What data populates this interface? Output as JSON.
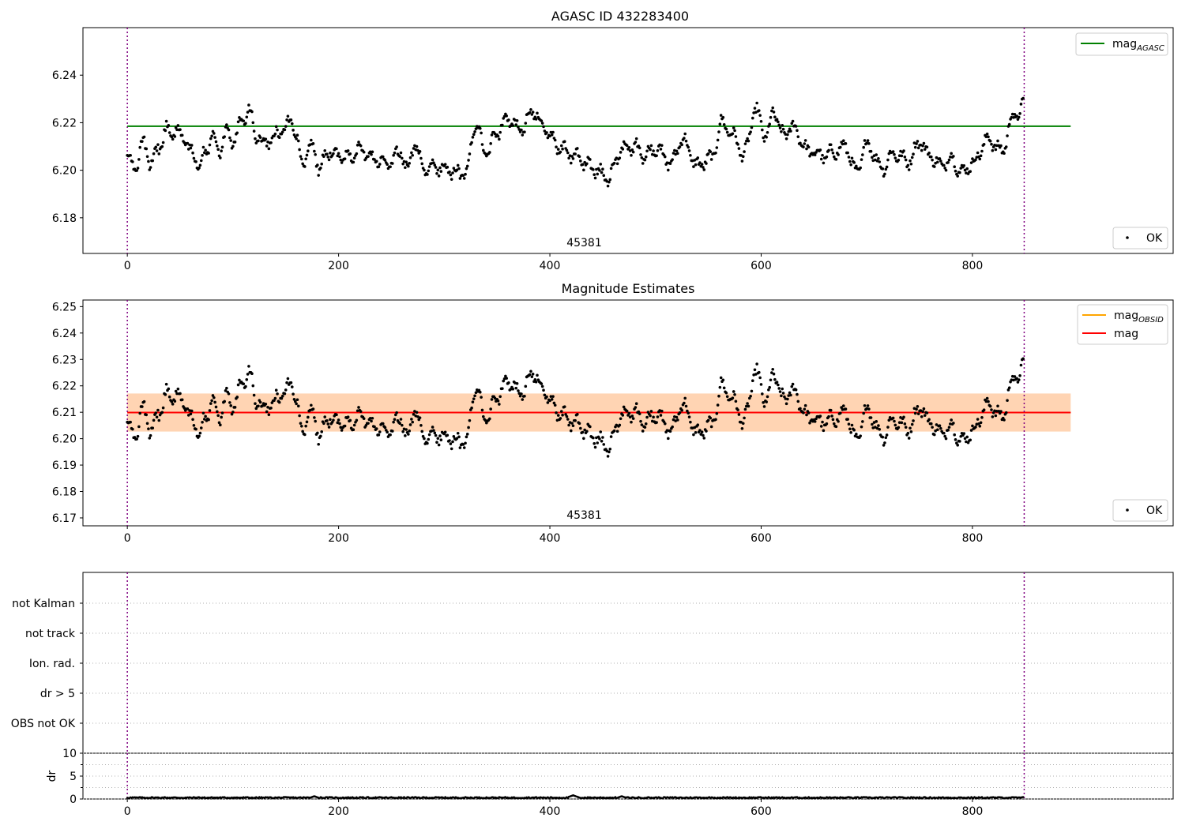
{
  "chart_data": [
    {
      "type": "scatter",
      "title": "AGASC ID 432283400",
      "xlabel": "",
      "ylabel": "",
      "xlim": [
        -42,
        990
      ],
      "ylim": [
        6.165,
        6.26
      ],
      "x_ticks": [
        "0",
        "200",
        "400",
        "600",
        "800"
      ],
      "y_ticks": [
        "6.18",
        "6.20",
        "6.22",
        "6.24"
      ],
      "y_tick_values": [
        6.18,
        6.2,
        6.22,
        6.24
      ],
      "annotation": "45381",
      "obsid_boundaries": [
        0,
        849
      ],
      "mag_agasc": 6.2185,
      "mag_agasc_xrange": [
        0,
        893
      ],
      "legend_upper": [
        {
          "label": "mag",
          "sub": "AGASC",
          "color": "#008000",
          "marker": "line"
        }
      ],
      "legend_lower": [
        {
          "label": "OK",
          "color": "#000000",
          "marker": "dot"
        }
      ],
      "grid": false,
      "series": [
        {
          "name": "OK",
          "n_points": 849,
          "x_range": [
            0,
            849
          ],
          "anchor_x": [
            0,
            4,
            8,
            15,
            22,
            30,
            38,
            45,
            52,
            60,
            68,
            75,
            80,
            87,
            95,
            100,
            108,
            115,
            122,
            130,
            138,
            145,
            155,
            160,
            165,
            175,
            182,
            190,
            200,
            210,
            220,
            235,
            250,
            258,
            265,
            272,
            280,
            300,
            310,
            320,
            330,
            340,
            350,
            360,
            372,
            385,
            395,
            410,
            425,
            440,
            455,
            470,
            480,
            490,
            500,
            515,
            525,
            540,
            553,
            563,
            575,
            583,
            595,
            605,
            612,
            620,
            630,
            645,
            660,
            670,
            680,
            690,
            700,
            715,
            725,
            740,
            750,
            760,
            770,
            780,
            790,
            800,
            815,
            828,
            838,
            849
          ],
          "anchor_y": [
            6.205,
            6.203,
            6.201,
            6.212,
            6.203,
            6.21,
            6.217,
            6.216,
            6.214,
            6.208,
            6.203,
            6.208,
            6.214,
            6.208,
            6.217,
            6.212,
            6.22,
            6.225,
            6.215,
            6.211,
            6.214,
            6.216,
            6.221,
            6.213,
            6.203,
            6.21,
            6.201,
            6.208,
            6.206,
            6.206,
            6.209,
            6.204,
            6.203,
            6.208,
            6.2,
            6.211,
            6.201,
            6.201,
            6.199,
            6.199,
            6.218,
            6.207,
            6.216,
            6.222,
            6.217,
            6.225,
            6.217,
            6.209,
            6.206,
            6.201,
            6.197,
            6.21,
            6.21,
            6.206,
            6.209,
            6.203,
            6.213,
            6.202,
            6.205,
            6.22,
            6.214,
            6.206,
            6.225,
            6.214,
            6.225,
            6.215,
            6.218,
            6.208,
            6.206,
            6.208,
            6.21,
            6.199,
            6.211,
            6.201,
            6.207,
            6.204,
            6.212,
            6.206,
            6.202,
            6.205,
            6.199,
            6.203,
            6.213,
            6.208,
            6.222,
            6.227
          ]
        }
      ]
    },
    {
      "type": "scatter",
      "title": "Magnitude Estimates",
      "xlabel": "",
      "ylabel": "",
      "xlim": [
        -42,
        990
      ],
      "ylim": [
        6.167,
        6.2525
      ],
      "x_ticks": [
        "0",
        "200",
        "400",
        "600",
        "800"
      ],
      "y_ticks": [
        "6.17",
        "6.18",
        "6.19",
        "6.20",
        "6.21",
        "6.22",
        "6.23",
        "6.24",
        "6.25"
      ],
      "y_tick_values": [
        6.17,
        6.18,
        6.19,
        6.2,
        6.21,
        6.22,
        6.23,
        6.24,
        6.25
      ],
      "annotation": "45381",
      "obsid_boundaries": [
        0,
        849
      ],
      "mag_obsid": 6.2099,
      "mag": 6.2099,
      "band_obsid": [
        6.2027,
        6.2171
      ],
      "band_mag": [
        6.2027,
        6.2171
      ],
      "band_xrange": [
        0,
        893
      ],
      "legend_upper": [
        {
          "label": "mag",
          "sub": "OBSID",
          "color": "#ffa500",
          "marker": "line"
        },
        {
          "label": "mag",
          "sub": "",
          "color": "#ff0000",
          "marker": "line"
        }
      ],
      "legend_lower": [
        {
          "label": "OK",
          "color": "#000000",
          "marker": "dot"
        }
      ],
      "grid": false,
      "series": [
        {
          "name": "OK",
          "same_as_panel": 0
        }
      ]
    },
    {
      "type": "scatter",
      "title": "",
      "xlim": [
        -42,
        990
      ],
      "categories": [
        "not Kalman",
        "not track",
        "Ion. rad.",
        "dr > 5",
        "OBS not OK"
      ],
      "grid": "y-dotted",
      "obsid_boundaries": [
        0,
        849
      ],
      "series": []
    },
    {
      "type": "line",
      "title": "",
      "ylabel": "dr",
      "xlim": [
        -42,
        990
      ],
      "ylim": [
        0,
        10
      ],
      "x_ticks": [
        "0",
        "200",
        "400",
        "600",
        "800"
      ],
      "y_ticks": [
        "0",
        "5",
        "10"
      ],
      "y_tick_values": [
        0,
        5,
        10
      ],
      "y_gridlines": [
        0,
        2.5,
        5,
        7.5,
        10
      ],
      "obsid_boundaries": [
        0,
        849
      ],
      "series": [
        {
          "name": "dr",
          "mean": 0.3,
          "peaks": [
            [
              177,
              0.6
            ],
            [
              422,
              0.8
            ],
            [
              468,
              0.6
            ]
          ]
        }
      ]
    }
  ]
}
